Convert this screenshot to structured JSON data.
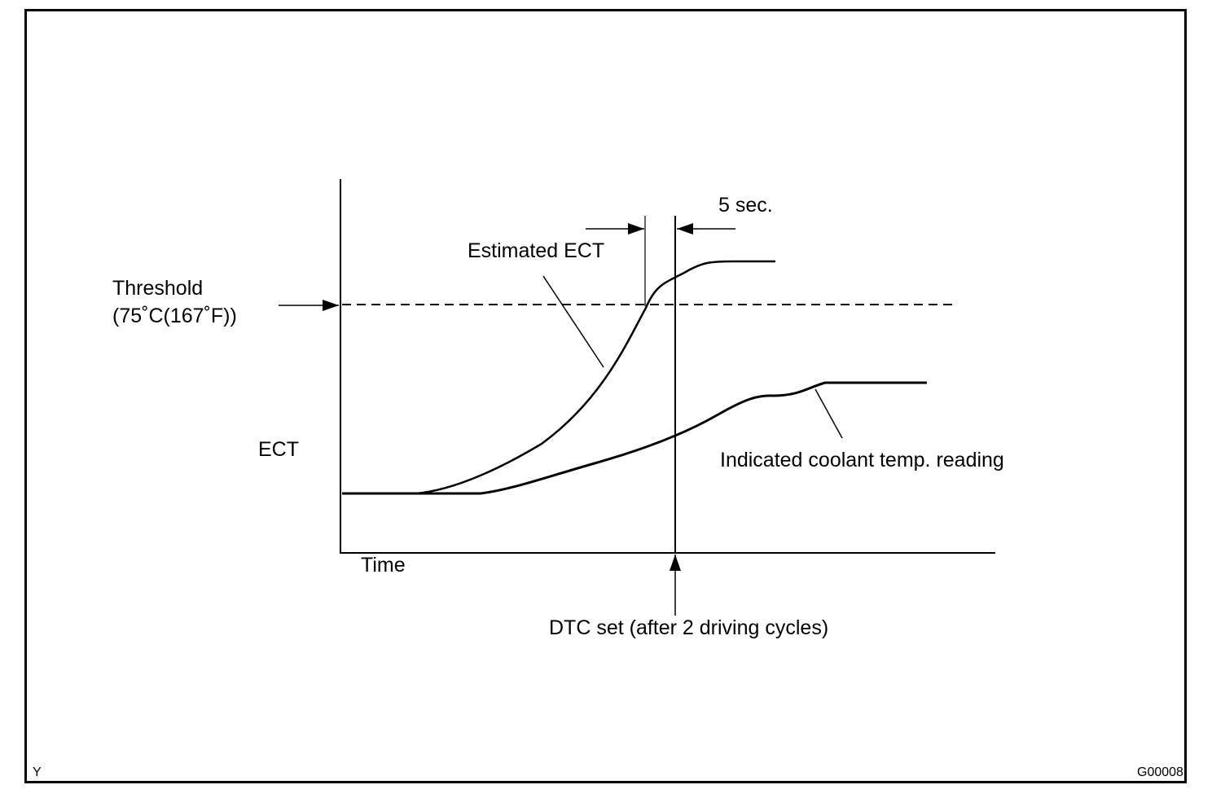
{
  "labels": {
    "time_delay": "5 sec.",
    "estimated_ect": "Estimated ECT",
    "threshold_line1": "Threshold",
    "threshold_line2": "(75˚C(167˚F))",
    "ect_axis": "ECT",
    "time_axis": "Time",
    "indicated_reading": "Indicated coolant temp. reading",
    "dtc_set": "DTC set (after 2 driving cycles)",
    "corner_left": "Y",
    "figure_code": "G00008"
  },
  "colors": {
    "line": "#000000",
    "background": "#ffffff"
  }
}
